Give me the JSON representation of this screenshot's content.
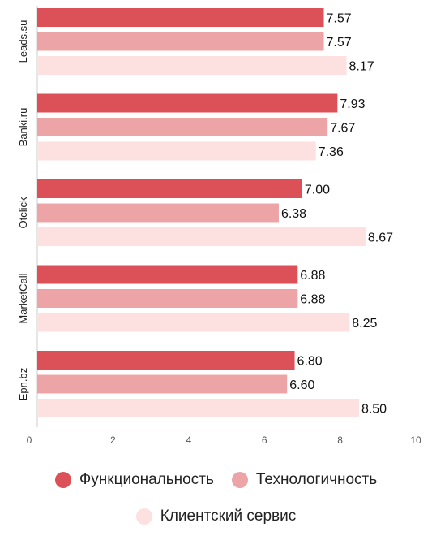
{
  "chart_data": {
    "type": "bar",
    "orientation": "horizontal",
    "categories": [
      "Leads.su",
      "Banki.ru",
      "Otclick",
      "MarketCall",
      "Epn.bz"
    ],
    "series": [
      {
        "name": "Функциональность",
        "color": "#dc5158",
        "values": [
          7.57,
          7.93,
          7.0,
          6.88,
          6.8
        ]
      },
      {
        "name": "Технологичность",
        "color": "#eca4a6",
        "values": [
          7.57,
          7.67,
          6.38,
          6.88,
          6.6
        ]
      },
      {
        "name": "Клиентский сервис",
        "color": "#fde1e1",
        "values": [
          8.17,
          7.36,
          8.67,
          8.25,
          8.5
        ]
      }
    ],
    "data_labels": [
      [
        "7.57",
        "7.57",
        "8.17"
      ],
      [
        "7.93",
        "7.67",
        "7.36"
      ],
      [
        "7.00",
        "6.38",
        "8.67"
      ],
      [
        "6.88",
        "6.88",
        "8.25"
      ],
      [
        "6.80",
        "6.60",
        "8.50"
      ]
    ],
    "x_ticks": [
      "0",
      "2",
      "4",
      "6",
      "8",
      "10"
    ],
    "xlim": [
      0,
      10
    ],
    "grid": false,
    "legend_position": "bottom"
  }
}
